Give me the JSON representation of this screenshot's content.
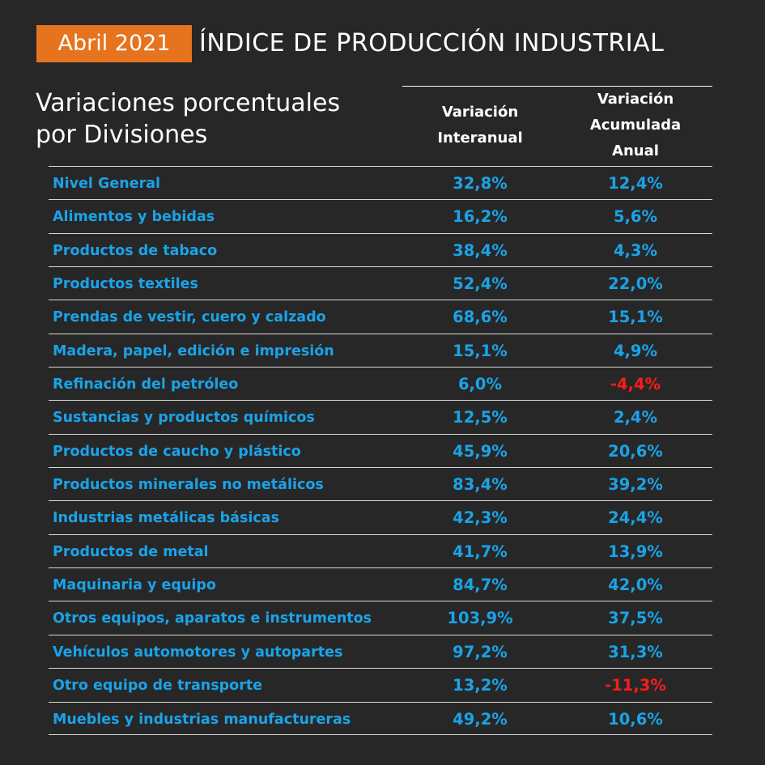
{
  "header": {
    "date_badge": "Abril 2021",
    "title": "ÍNDICE DE PRODUCCIÓN INDUSTRIAL",
    "accent_color": "#e6731e"
  },
  "subtitle": {
    "line1": "Variaciones porcentuales",
    "line2": "por Divisiones"
  },
  "columns": {
    "interanual": [
      "Variación",
      "Interanual"
    ],
    "acumulada": [
      "Variación",
      "Acumulada",
      "Anual"
    ]
  },
  "colors": {
    "value": "#1aa3e8",
    "negative": "#ff1a1a",
    "background": "#272727"
  },
  "rows": [
    {
      "name": "Nivel General",
      "interanual": "32,8%",
      "acumulada": "12,4%"
    },
    {
      "name": "Alimentos y bebidas",
      "interanual": "16,2%",
      "acumulada": "5,6%"
    },
    {
      "name": "Productos de tabaco",
      "interanual": "38,4%",
      "acumulada": "4,3%"
    },
    {
      "name": "Productos textiles",
      "interanual": "52,4%",
      "acumulada": "22,0%"
    },
    {
      "name": "Prendas de vestir, cuero y calzado",
      "interanual": "68,6%",
      "acumulada": "15,1%"
    },
    {
      "name": "Madera, papel, edición e impresión",
      "interanual": "15,1%",
      "acumulada": "4,9%"
    },
    {
      "name": "Refinación del petróleo",
      "interanual": "6,0%",
      "acumulada": "-4,4%"
    },
    {
      "name": "Sustancias y productos químicos",
      "interanual": "12,5%",
      "acumulada": "2,4%"
    },
    {
      "name": "Productos de caucho y plástico",
      "interanual": "45,9%",
      "acumulada": "20,6%"
    },
    {
      "name": "Productos minerales no metálicos",
      "interanual": "83,4%",
      "acumulada": "39,2%"
    },
    {
      "name": "Industrias metálicas básicas",
      "interanual": "42,3%",
      "acumulada": "24,4%"
    },
    {
      "name": "Productos de metal",
      "interanual": "41,7%",
      "acumulada": "13,9%"
    },
    {
      "name": "Maquinaria y equipo",
      "interanual": "84,7%",
      "acumulada": "42,0%"
    },
    {
      "name": "Otros equipos, aparatos e instrumentos",
      "interanual": "103,9%",
      "acumulada": "37,5%"
    },
    {
      "name": "Vehículos automotores y autopartes",
      "interanual": "97,2%",
      "acumulada": "31,3%"
    },
    {
      "name": "Otro equipo de transporte",
      "interanual": "13,2%",
      "acumulada": "-11,3%"
    },
    {
      "name": "Muebles y industrias manufactureras",
      "interanual": "49,2%",
      "acumulada": "10,6%"
    }
  ]
}
